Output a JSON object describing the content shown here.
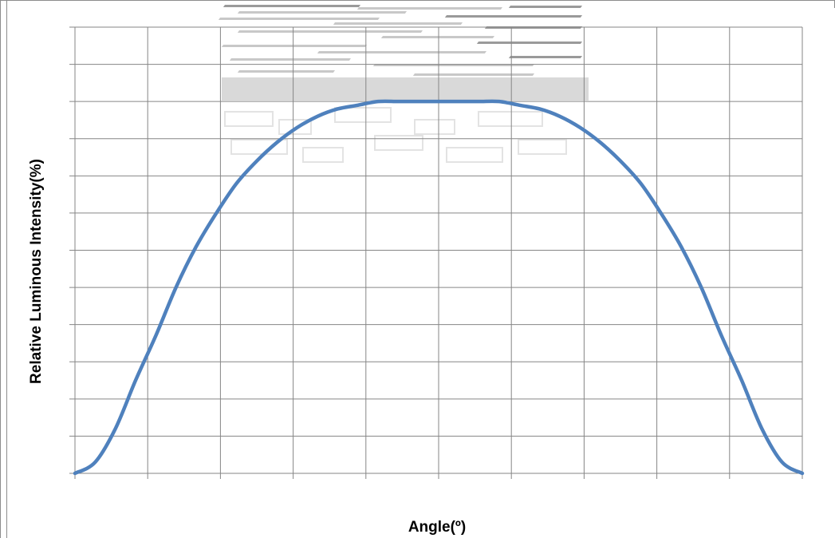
{
  "chart_data": {
    "type": "line",
    "title": "",
    "xlabel": "Angle(º)",
    "ylabel": "Relative Luminous Intensity(%)",
    "x_tick_labels": [],
    "y_tick_labels": [],
    "xlim": [
      -90,
      90
    ],
    "ylim": [
      0,
      1.2
    ],
    "grid": true,
    "legend": "none",
    "series": [
      {
        "x": [
          -90,
          -85,
          -80,
          -75,
          -70,
          -65,
          -60,
          -55,
          -50,
          -45,
          -40,
          -35,
          -30,
          -25,
          -20,
          -15,
          -10,
          -5,
          0,
          5,
          10,
          15,
          20,
          25,
          30,
          35,
          40,
          45,
          50,
          55,
          60,
          65,
          70,
          75,
          80,
          85,
          90
        ],
        "values": [
          0.0,
          0.03,
          0.12,
          0.25,
          0.37,
          0.5,
          0.61,
          0.7,
          0.78,
          0.84,
          0.89,
          0.93,
          0.96,
          0.98,
          0.99,
          1.0,
          1.0,
          1.0,
          1.0,
          1.0,
          1.0,
          1.0,
          0.99,
          0.98,
          0.96,
          0.93,
          0.89,
          0.84,
          0.78,
          0.7,
          0.61,
          0.5,
          0.37,
          0.25,
          0.12,
          0.03,
          0.0
        ]
      }
    ],
    "colors": {
      "line": "#4f81bd",
      "grid": "#868686",
      "watermark": "#d9d9d9"
    }
  }
}
